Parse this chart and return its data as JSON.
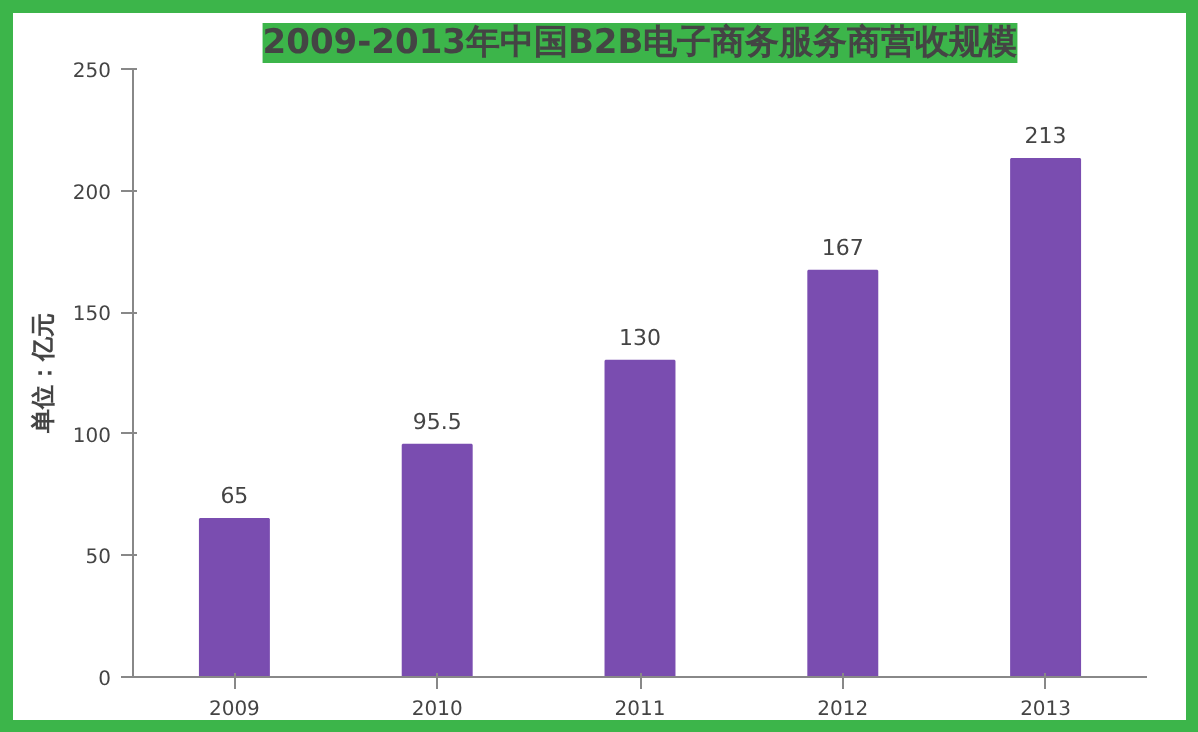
{
  "chart_data": {
    "type": "bar",
    "title": "2009-2013年中国B2B电子商务服务商营收规模",
    "ylabel": "单位：亿元",
    "categories": [
      "2009",
      "2010",
      "2011",
      "2012",
      "2013"
    ],
    "values": [
      65,
      95.5,
      130,
      167,
      213
    ],
    "color": "#7a4db0",
    "ylim": [
      0,
      250
    ],
    "yticks": [
      0,
      50,
      100,
      150,
      200,
      250
    ],
    "grid": false,
    "data_labels": true
  }
}
